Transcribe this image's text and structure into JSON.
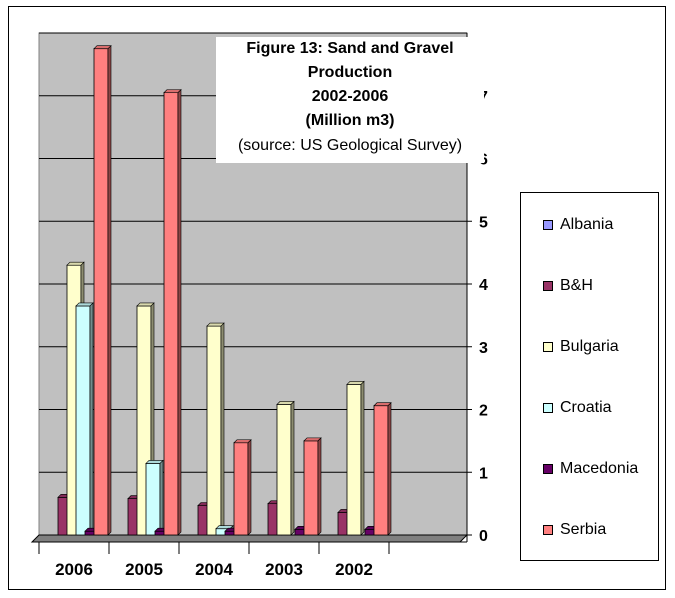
{
  "chart_data": {
    "type": "bar",
    "title": "Figure 13: Sand and Gravel Production",
    "title_line2": "2002-2006",
    "title_line3": "(Million m3)",
    "subtitle": "(source: US Geological Survey)",
    "categories": [
      "2006",
      "2005",
      "2004",
      "2003",
      "2002"
    ],
    "ylim": [
      0,
      8
    ],
    "yticks": [
      "0",
      "1",
      "2",
      "3",
      "4",
      "5",
      "6",
      "7"
    ],
    "legend_position": "right",
    "grid": true,
    "series": [
      {
        "name": "Albania",
        "color": "#9999ff",
        "values": [
          0,
          0,
          0,
          0,
          0
        ]
      },
      {
        "name": "B&H",
        "color": "#993366",
        "values": [
          0.6,
          0.58,
          0.47,
          0.5,
          0.36
        ]
      },
      {
        "name": "Bulgaria",
        "color": "#ffffcc",
        "values": [
          4.3,
          3.65,
          3.33,
          2.08,
          2.4
        ]
      },
      {
        "name": "Croatia",
        "color": "#ccffff",
        "values": [
          3.65,
          1.14,
          0.1,
          0,
          0
        ]
      },
      {
        "name": "Macedonia",
        "color": "#660066",
        "values": [
          0.06,
          0.06,
          0.06,
          0.09,
          0.09
        ]
      },
      {
        "name": "Serbia",
        "color": "#ff8080",
        "values": [
          7.75,
          7.05,
          1.47,
          1.5,
          2.06
        ]
      }
    ]
  }
}
